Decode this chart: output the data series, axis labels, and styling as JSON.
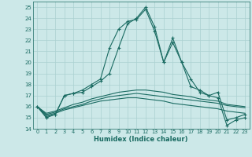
{
  "xlabel": "Humidex (Indice chaleur)",
  "xlim": [
    -0.5,
    23.5
  ],
  "ylim": [
    14,
    25.5
  ],
  "yticks": [
    14,
    15,
    16,
    17,
    18,
    19,
    20,
    21,
    22,
    23,
    24,
    25
  ],
  "xticks": [
    0,
    1,
    2,
    3,
    4,
    5,
    6,
    7,
    8,
    9,
    10,
    11,
    12,
    13,
    14,
    15,
    16,
    17,
    18,
    19,
    20,
    21,
    22,
    23
  ],
  "background_color": "#cce8e8",
  "grid_color": "#aad0d0",
  "line_color": "#1a6b62",
  "series_with_markers": [
    [
      16.0,
      15.0,
      15.3,
      17.0,
      17.2,
      17.5,
      18.0,
      18.5,
      21.3,
      23.0,
      23.7,
      23.9,
      24.8,
      22.8,
      20.0,
      22.2,
      20.0,
      18.5,
      17.3,
      17.0,
      17.3,
      14.8,
      15.0,
      15.3
    ],
    [
      16.0,
      15.1,
      15.3,
      17.0,
      17.2,
      17.3,
      17.8,
      18.3,
      19.0,
      21.3,
      23.5,
      24.0,
      25.0,
      23.2,
      20.0,
      21.8,
      20.0,
      17.8,
      17.5,
      17.0,
      16.8,
      14.3,
      14.8,
      15.0
    ]
  ],
  "series_flat": [
    [
      16.0,
      15.2,
      15.4,
      15.7,
      15.9,
      16.1,
      16.3,
      16.5,
      16.6,
      16.7,
      16.8,
      16.8,
      16.7,
      16.6,
      16.5,
      16.3,
      16.2,
      16.1,
      16.0,
      15.9,
      15.8,
      15.6,
      15.5,
      15.4
    ],
    [
      16.0,
      15.3,
      15.5,
      15.8,
      16.0,
      16.2,
      16.5,
      16.7,
      16.9,
      17.0,
      17.1,
      17.2,
      17.1,
      17.0,
      16.9,
      16.8,
      16.7,
      16.6,
      16.5,
      16.4,
      16.3,
      16.1,
      16.0,
      15.9
    ],
    [
      16.0,
      15.4,
      15.6,
      15.9,
      16.2,
      16.4,
      16.7,
      16.9,
      17.1,
      17.3,
      17.4,
      17.5,
      17.5,
      17.4,
      17.3,
      17.1,
      17.0,
      16.9,
      16.7,
      16.6,
      16.5,
      16.2,
      16.1,
      16.0
    ]
  ]
}
